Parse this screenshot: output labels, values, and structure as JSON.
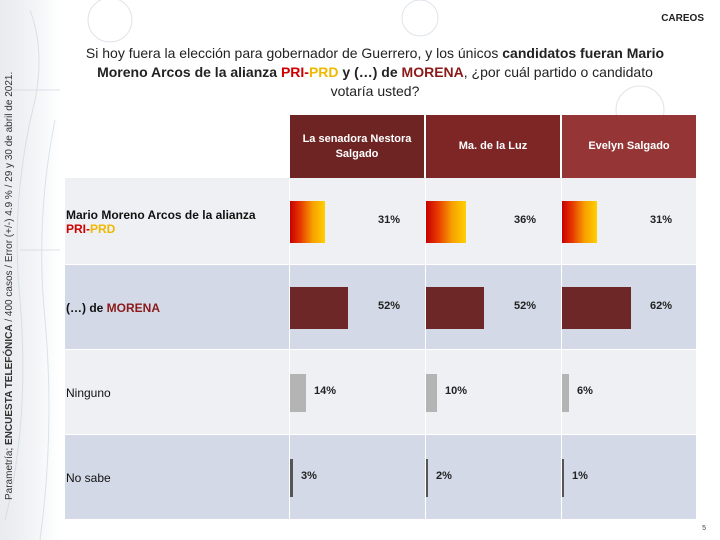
{
  "tag": "CAREOS",
  "title": {
    "part1": "Si hoy fuera la elección para gobernador de Guerrero, y los únicos ",
    "bold1": "candidatos fueran Mario Moreno Arcos de la alianza ",
    "pri": "PRI",
    "dash": "-",
    "prd": "PRD",
    "bold2": " y (…) de ",
    "morena": "MORENA",
    "part2": ", ¿por cuál partido o candidato votaría usted?"
  },
  "side_note": {
    "prefix": "Parametría; ",
    "bold": "ENCUESTA TELEFÓNICA",
    "rest": " / 400 casos / Error (+/-) 4.9 % / 29 y 30 de abril de 2021."
  },
  "page_number": "5",
  "colors": {
    "header_dark": "#6f2424",
    "header_mid": "#7e2626",
    "header_right": "#953535",
    "morena_bar": "#6e2727",
    "ninguno_bar": "#b4b4b4",
    "nosabe_bar": "#555555",
    "row_light": "#eef0f4",
    "row_dark": "#d3d9e6"
  },
  "chart_data": {
    "type": "bar",
    "orientation": "horizontal",
    "xlim": [
      0,
      100
    ],
    "columns": [
      "La senadora Nestora Salgado",
      "Ma. de la Luz",
      "Evelyn Salgado"
    ],
    "rows": [
      {
        "label": "Mario Moreno Arcos de la alianza",
        "label_pri": "PRI",
        "label_dash": "-",
        "label_prd": "PRD",
        "values": [
          31,
          36,
          31
        ],
        "display": [
          "31%",
          "36%",
          "31%"
        ]
      },
      {
        "label": "(…) de ",
        "label_morena": "MORENA",
        "values": [
          52,
          52,
          62
        ],
        "display": [
          "52%",
          "52%",
          "62%"
        ]
      },
      {
        "label": "Ninguno",
        "values": [
          14,
          10,
          6
        ],
        "display": [
          "14%",
          "10%",
          "6%"
        ]
      },
      {
        "label": "No sabe",
        "values": [
          3,
          2,
          1
        ],
        "display": [
          "3%",
          "2%",
          "1%"
        ]
      }
    ]
  }
}
